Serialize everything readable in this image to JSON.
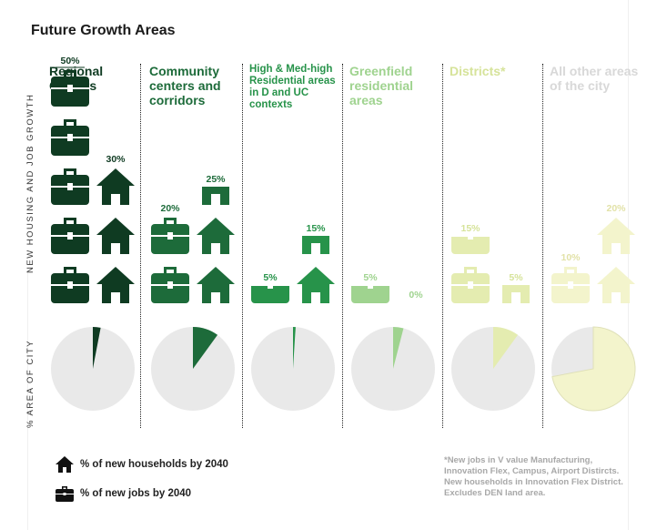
{
  "title": "Future Growth Areas",
  "y_label_top": "NEW HOUSING AND JOB GROWTH",
  "y_label_bottom": "% AREA OF CITY",
  "legend": {
    "households": "% of new households by 2040",
    "jobs": "% of new jobs by 2040"
  },
  "footnote": "*New jobs in V value Manufacturing, Innovation Flex, Campus, Airport Distircts. New households in Innovation Flex District. Excludes DEN land area.",
  "chart_data": {
    "type": "bar",
    "title": "Future Growth Areas",
    "categories": [
      "Regional Centers",
      "Community centers and corridors",
      "High & Med-high Residential areas in D and UC contexts",
      "Greenfield residential areas",
      "Districts*",
      "All other areas of the city"
    ],
    "colors": [
      "#0f3b22",
      "#1d6b3a",
      "#27934a",
      "#9fd38f",
      "#e4ecb0",
      "#f3f4cc"
    ],
    "series": [
      {
        "name": "% of new jobs by 2040",
        "values": [
          50,
          20,
          5,
          5,
          15,
          10
        ],
        "labels": [
          "50%",
          "20%",
          "5%",
          "5%",
          "15%",
          "10%"
        ]
      },
      {
        "name": "% of new households by 2040",
        "values": [
          30,
          25,
          15,
          0,
          5,
          20
        ],
        "labels": [
          "30%",
          "25%",
          "15%",
          "0%",
          "5%",
          "20%"
        ]
      }
    ],
    "area_of_city_pct": [
      3,
      10,
      1,
      4,
      10,
      72
    ],
    "ylabel": "NEW HOUSING AND JOB GROWTH"
  }
}
